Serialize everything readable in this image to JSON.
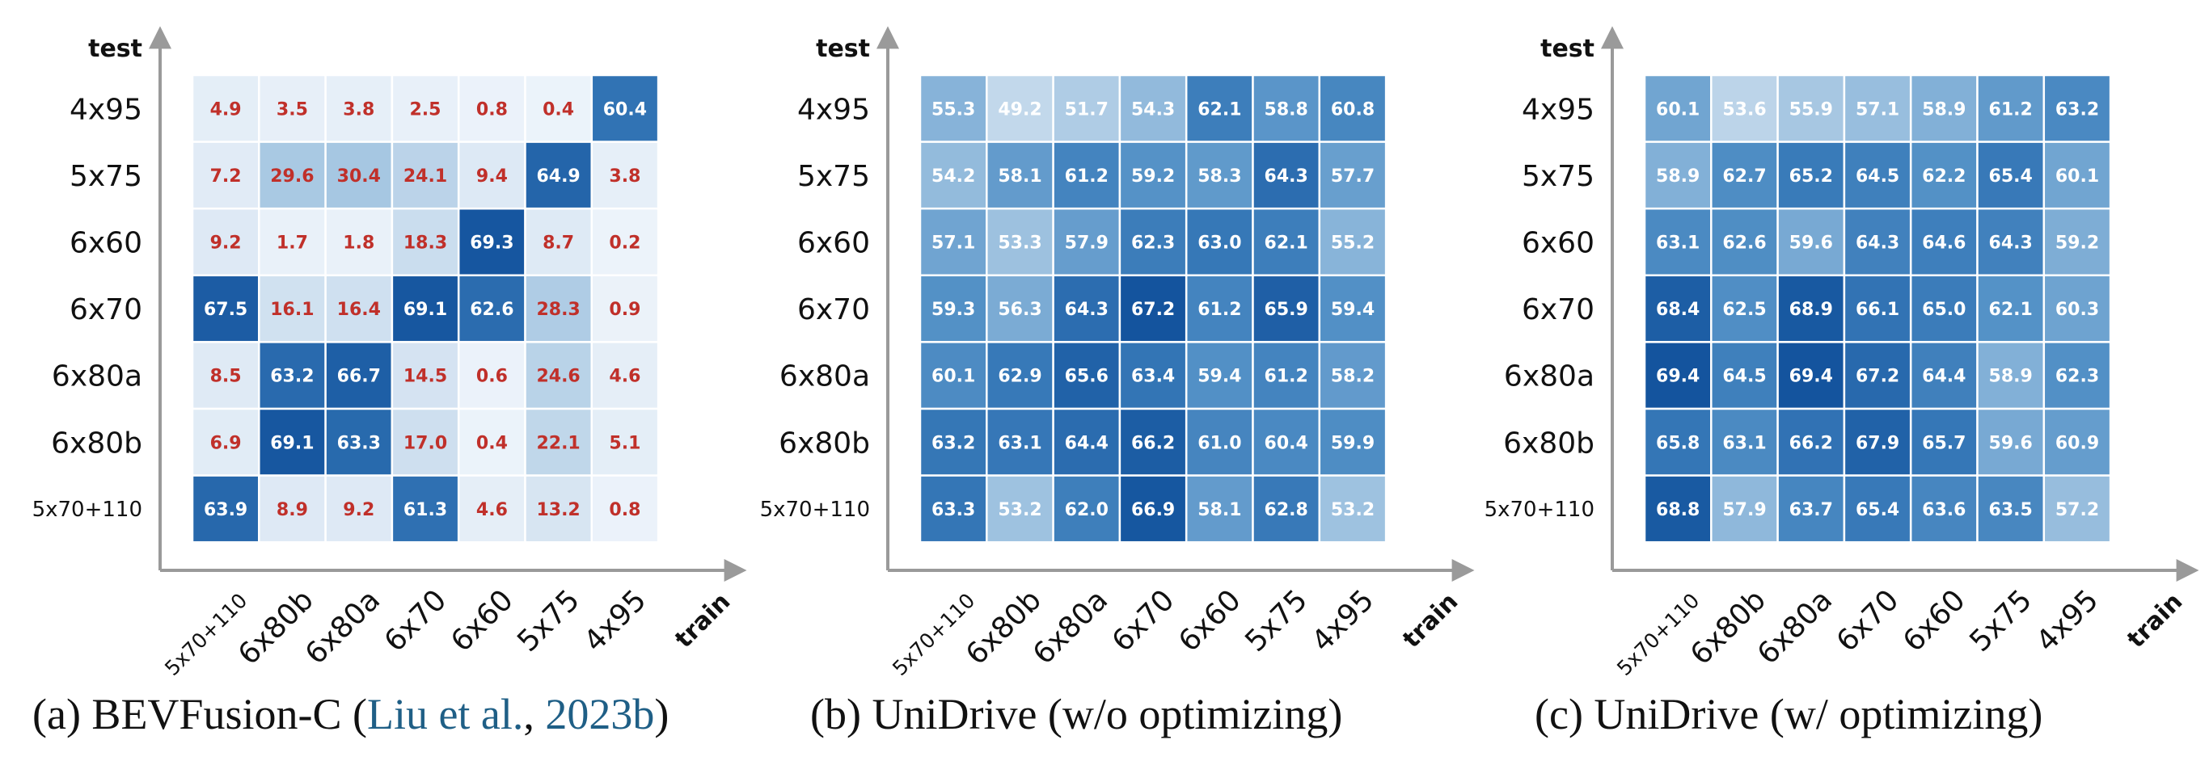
{
  "chart_data": [
    {
      "type": "heatmap",
      "xlabel": "train",
      "ylabel": "test",
      "x_categories": [
        "5x70+110",
        "6x80b",
        "6x80a",
        "6x70",
        "6x60",
        "5x75",
        "4x95"
      ],
      "y_categories": [
        "4x95",
        "5x75",
        "6x60",
        "6x70",
        "6x80a",
        "6x80b",
        "5x70+110"
      ],
      "values": [
        [
          4.9,
          3.5,
          3.8,
          2.5,
          0.8,
          0.4,
          60.4
        ],
        [
          7.2,
          29.6,
          30.4,
          24.1,
          9.4,
          64.9,
          3.8
        ],
        [
          9.2,
          1.7,
          1.8,
          18.3,
          69.3,
          8.7,
          0.2
        ],
        [
          67.5,
          16.1,
          16.4,
          69.1,
          62.6,
          28.3,
          0.9
        ],
        [
          8.5,
          63.2,
          66.7,
          14.5,
          0.6,
          24.6,
          4.6
        ],
        [
          6.9,
          69.1,
          63.3,
          17.0,
          0.4,
          22.1,
          5.1
        ],
        [
          63.9,
          8.9,
          9.2,
          61.3,
          4.6,
          13.2,
          0.8
        ]
      ],
      "caption": {
        "prefix": "(a) BEVFusion-C (",
        "cite_author": "Liu et al.",
        "sep": ", ",
        "cite_year": "2023b",
        "suffix": ")"
      }
    },
    {
      "type": "heatmap",
      "xlabel": "train",
      "ylabel": "test",
      "x_categories": [
        "5x70+110",
        "6x80b",
        "6x80a",
        "6x70",
        "6x60",
        "5x75",
        "4x95"
      ],
      "y_categories": [
        "4x95",
        "5x75",
        "6x60",
        "6x70",
        "6x80a",
        "6x80b",
        "5x70+110"
      ],
      "values": [
        [
          55.3,
          49.2,
          51.7,
          54.3,
          62.1,
          58.8,
          60.8
        ],
        [
          54.2,
          58.1,
          61.2,
          59.2,
          58.3,
          64.3,
          57.7
        ],
        [
          57.1,
          53.3,
          57.9,
          62.3,
          63.0,
          62.1,
          55.2
        ],
        [
          59.3,
          56.3,
          64.3,
          67.2,
          61.2,
          65.9,
          59.4
        ],
        [
          60.1,
          62.9,
          65.6,
          63.4,
          59.4,
          61.2,
          58.2
        ],
        [
          63.2,
          63.1,
          64.4,
          66.2,
          61.0,
          60.4,
          59.9
        ],
        [
          63.3,
          53.2,
          62.0,
          66.9,
          58.1,
          62.8,
          53.2
        ]
      ],
      "caption": {
        "prefix": "(b) UniDrive (w/o optimizing)",
        "cite_author": "",
        "sep": "",
        "cite_year": "",
        "suffix": ""
      }
    },
    {
      "type": "heatmap",
      "xlabel": "train",
      "ylabel": "test",
      "x_categories": [
        "5x70+110",
        "6x80b",
        "6x80a",
        "6x70",
        "6x60",
        "5x75",
        "4x95"
      ],
      "y_categories": [
        "4x95",
        "5x75",
        "6x60",
        "6x70",
        "6x80a",
        "6x80b",
        "5x70+110"
      ],
      "values": [
        [
          60.1,
          53.6,
          55.9,
          57.1,
          58.9,
          61.2,
          63.2
        ],
        [
          58.9,
          62.7,
          65.2,
          64.5,
          62.2,
          65.4,
          60.1
        ],
        [
          63.1,
          62.6,
          59.6,
          64.3,
          64.6,
          64.3,
          59.2
        ],
        [
          68.4,
          62.5,
          68.9,
          66.1,
          65.0,
          62.1,
          60.3
        ],
        [
          69.4,
          64.5,
          69.4,
          67.2,
          64.4,
          58.9,
          62.3
        ],
        [
          65.8,
          63.1,
          66.2,
          67.9,
          65.7,
          59.6,
          60.9
        ],
        [
          68.8,
          57.9,
          63.7,
          65.4,
          63.6,
          63.5,
          57.2
        ]
      ],
      "caption": {
        "prefix": "(c) UniDrive (w/ optimizing)",
        "cite_author": "",
        "sep": "",
        "cite_year": "",
        "suffix": ""
      }
    }
  ]
}
